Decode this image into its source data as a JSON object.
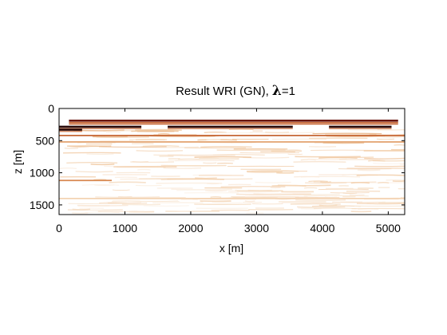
{
  "chart_data": {
    "type": "heatmap",
    "title": "Result WRI (GN), λ=1",
    "title_main": "Result WRI (GN), ",
    "title_symbol": "λ",
    "title_value": "=1",
    "xlabel": "x [m]",
    "ylabel": "z [m]",
    "xlim": [
      0,
      5250
    ],
    "ylim": [
      1650,
      0
    ],
    "y_reversed": true,
    "x_ticks": [
      0,
      1000,
      2000,
      3000,
      4000,
      5000
    ],
    "y_ticks": [
      0,
      500,
      1000,
      1500
    ],
    "grid": false,
    "colormap": "white-orange-red-black (seismic migration image)",
    "reflectors": [
      {
        "z": 190,
        "x_start": 150,
        "x_end": 5150,
        "strength": 0.85
      },
      {
        "z": 240,
        "x_start": 150,
        "x_end": 5150,
        "strength": 0.55
      },
      {
        "z": 285,
        "x_start": 0,
        "x_end": 1250,
        "strength": 1.0
      },
      {
        "z": 285,
        "x_start": 1650,
        "x_end": 3550,
        "strength": 1.0
      },
      {
        "z": 285,
        "x_start": 4100,
        "x_end": 5050,
        "strength": 1.0
      },
      {
        "z": 330,
        "x_start": 0,
        "x_end": 350,
        "strength": 1.0
      },
      {
        "z": 420,
        "x_start": 0,
        "x_end": 5250,
        "strength": 0.55
      },
      {
        "z": 520,
        "x_start": 0,
        "x_end": 5250,
        "strength": 0.35
      },
      {
        "z": 1120,
        "x_start": 0,
        "x_end": 800,
        "strength": 0.45
      },
      {
        "z": 1400,
        "x_start": 0,
        "x_end": 5250,
        "strength": 0.2
      }
    ]
  }
}
